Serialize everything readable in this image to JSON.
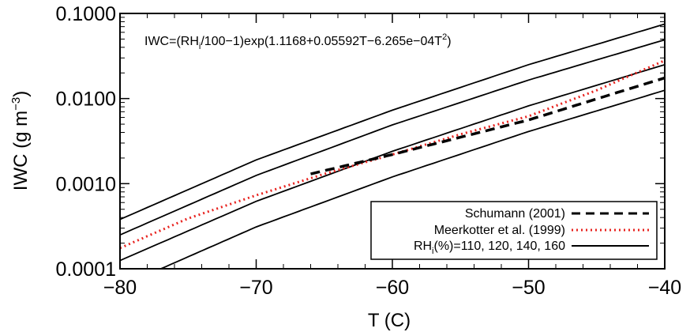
{
  "chart_data": {
    "type": "line",
    "xlabel": "T (C)",
    "ylabel_main": "IWC (g m",
    "ylabel_exp": "−3",
    "ylabel_tail": ")",
    "xlim": [
      -80,
      -40
    ],
    "ylim": [
      0.0001,
      0.1
    ],
    "yscale": "log",
    "grid": false,
    "x_ticks": [
      -80,
      -70,
      -60,
      -50,
      -40
    ],
    "x_tick_labels": [
      "−80",
      "−70",
      "−60",
      "−50",
      "−40"
    ],
    "y_ticks": [
      0.0001,
      0.001,
      0.01,
      0.1
    ],
    "y_tick_labels": [
      "0.0001",
      "0.0010",
      "0.0100",
      "0.1000"
    ],
    "annotation": {
      "p1": "IWC=(RH",
      "sub": "i",
      "p2": "/100−1)exp(1.1168+0.05592T−6.265e−04T",
      "sup": "2",
      "p3": ")"
    },
    "legend_position": "bottom-right",
    "legend": [
      {
        "key": "schumann",
        "label": "Schumann (2001)",
        "style": "dashed",
        "color": "#000000"
      },
      {
        "key": "meerkotter",
        "label": "Meerkotter et al. (1999)",
        "style": "dotted",
        "color": "#e8231f"
      },
      {
        "key": "rhi",
        "label_p1": "RH",
        "label_sub": "i",
        "label_p2": "(%)=110, 120, 140, 160",
        "style": "solid",
        "color": "#000000"
      }
    ],
    "series": [
      {
        "key": "rhi_160",
        "style": "solid",
        "color": "#000000",
        "x": [
          -80,
          -70,
          -60,
          -50,
          -40
        ],
        "y": [
          0.00038,
          0.0019,
          0.0073,
          0.025,
          0.075
        ]
      },
      {
        "key": "rhi_140",
        "style": "solid",
        "color": "#000000",
        "x": [
          -80,
          -70,
          -60,
          -50,
          -40
        ],
        "y": [
          0.00025,
          0.00125,
          0.0049,
          0.0165,
          0.049
        ]
      },
      {
        "key": "rhi_120",
        "style": "solid",
        "color": "#000000",
        "x": [
          -80,
          -70,
          -60,
          -50,
          -40
        ],
        "y": [
          0.000125,
          0.00062,
          0.0024,
          0.0082,
          0.025
        ]
      },
      {
        "key": "rhi_110",
        "style": "solid",
        "color": "#000000",
        "x": [
          -77,
          -70,
          -60,
          -50,
          -40
        ],
        "y": [
          0.0001,
          0.00031,
          0.0012,
          0.0041,
          0.0125
        ]
      },
      {
        "key": "meerkotter",
        "style": "dotted",
        "color": "#e8231f",
        "x": [
          -80,
          -75,
          -70,
          -65,
          -60,
          -55,
          -50,
          -45,
          -40
        ],
        "y": [
          0.000175,
          0.00039,
          0.00073,
          0.0013,
          0.0022,
          0.0038,
          0.0062,
          0.0125,
          0.028
        ]
      },
      {
        "key": "schumann",
        "style": "dashed",
        "color": "#000000",
        "x": [
          -66,
          -60,
          -50,
          -40
        ],
        "y": [
          0.0013,
          0.0022,
          0.0056,
          0.0175
        ]
      }
    ]
  }
}
